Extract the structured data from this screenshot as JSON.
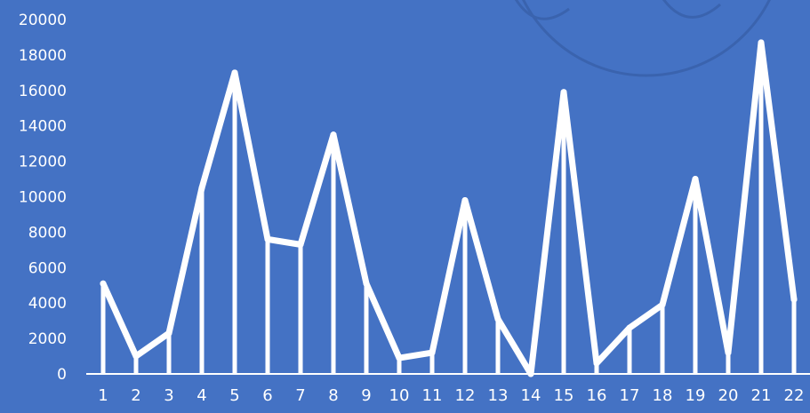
{
  "colors": {
    "background": "#4472c4",
    "series": "#ffffff",
    "text": "#ffffff",
    "decoration": "#3a63ae"
  },
  "chart_data": {
    "type": "line",
    "title": "",
    "xlabel": "",
    "ylabel": "",
    "categories": [
      "1",
      "2",
      "3",
      "4",
      "5",
      "6",
      "7",
      "8",
      "9",
      "10",
      "11",
      "12",
      "13",
      "14",
      "15",
      "16",
      "17",
      "18",
      "19",
      "20",
      "21",
      "22"
    ],
    "series": [
      {
        "values": [
          5100,
          1000,
          2300,
          10500,
          17000,
          7600,
          7300,
          13500,
          5100,
          900,
          1200,
          9800,
          3100,
          0,
          15900,
          600,
          2600,
          3900,
          11000,
          1200,
          18700,
          4200
        ],
        "drop_lines": true
      }
    ],
    "ylim": [
      0,
      20000
    ],
    "yticks": [
      0,
      2000,
      4000,
      6000,
      8000,
      10000,
      12000,
      14000,
      16000,
      18000,
      20000
    ],
    "grid": false,
    "legend": "none"
  }
}
